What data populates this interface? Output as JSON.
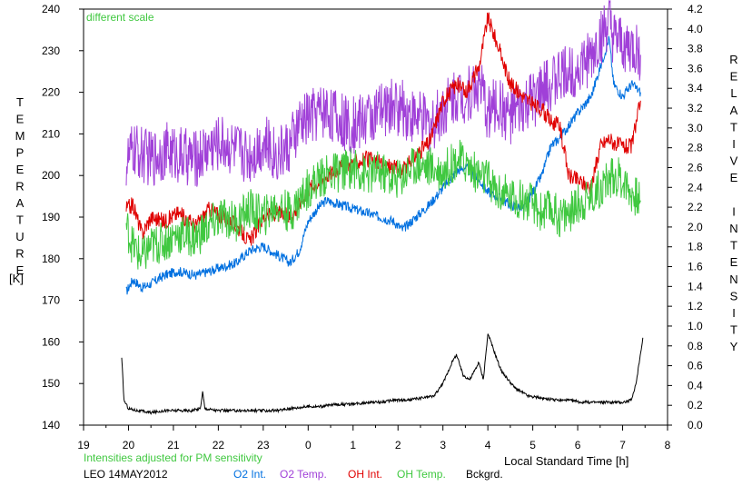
{
  "chart_data": {
    "type": "line",
    "title": "",
    "xlabel": "Local Standard Time [h]",
    "ylabel_left": "TEMPERATURE",
    "ylabel_left_unit": "[K]",
    "ylabel_right": "RELATIVE INTENSITY",
    "x_tick_labels": [
      "19",
      "20",
      "21",
      "22",
      "23",
      "0",
      "1",
      "2",
      "3",
      "4",
      "5",
      "6",
      "7",
      "8"
    ],
    "x_range": [
      19,
      32
    ],
    "y_left_range": [
      140,
      240
    ],
    "y_left_ticks": [
      140,
      150,
      160,
      170,
      180,
      190,
      200,
      210,
      220,
      230,
      240
    ],
    "y_right_range": [
      0.0,
      4.2
    ],
    "y_right_ticks": [
      "0.0",
      "0.2",
      "0.4",
      "0.6",
      "0.8",
      "1.0",
      "1.2",
      "1.4",
      "1.6",
      "1.8",
      "2.0",
      "2.2",
      "2.4",
      "2.6",
      "2.8",
      "3.0",
      "3.2",
      "3.4",
      "3.6",
      "3.8",
      "4.0",
      "4.2"
    ],
    "grid": false,
    "annotations": {
      "scale_note": "different scale",
      "pm_note": "Intensities adjusted for PM sensitivity",
      "station": "LEO 14MAY2012"
    },
    "legend_placement": "bottom",
    "series": [
      {
        "name": "O2 Int.",
        "color": "#0070e0",
        "axis": "left",
        "x": [
          19.95,
          20.1,
          20.3,
          20.5,
          20.8,
          21.1,
          21.5,
          21.8,
          22.1,
          22.4,
          22.7,
          23.0,
          23.3,
          23.6,
          23.8,
          24.0,
          24.2,
          24.4,
          24.7,
          25.0,
          25.3,
          25.6,
          25.9,
          26.1,
          26.4,
          26.7,
          27.0,
          27.3,
          27.5,
          27.8,
          28.0,
          28.2,
          28.5,
          28.8,
          29.0,
          29.2,
          29.4,
          29.6,
          29.8,
          30.0,
          30.3,
          30.5,
          30.7,
          30.8,
          31.0,
          31.2,
          31.4
        ],
        "y": [
          172,
          175,
          173,
          174,
          176,
          177,
          176,
          177,
          178,
          179,
          182,
          183,
          181,
          179,
          182,
          189,
          192,
          194,
          193,
          192,
          191,
          190,
          189,
          187,
          190,
          193,
          197,
          201,
          202,
          199,
          196,
          195,
          193,
          192,
          196,
          200,
          207,
          209,
          212,
          215,
          219,
          226,
          233,
          222,
          219,
          222,
          220
        ]
      },
      {
        "name": "O2 Temp.",
        "color": "#a040d8",
        "axis": "left",
        "x": [
          19.95,
          20.1,
          20.3,
          20.5,
          20.8,
          21.1,
          21.5,
          21.8,
          22.1,
          22.4,
          22.7,
          23.0,
          23.3,
          23.6,
          23.8,
          24.0,
          24.2,
          24.4,
          24.7,
          25.0,
          25.3,
          25.6,
          25.9,
          26.1,
          26.4,
          26.7,
          27.0,
          27.3,
          27.5,
          27.8,
          28.0,
          28.2,
          28.5,
          28.8,
          29.0,
          29.2,
          29.4,
          29.6,
          29.8,
          30.0,
          30.3,
          30.5,
          30.7,
          30.8,
          31.0,
          31.2,
          31.4
        ],
        "y": [
          203,
          206,
          205,
          204,
          206,
          205,
          204,
          207,
          208,
          206,
          205,
          208,
          205,
          207,
          212,
          214,
          215,
          216,
          213,
          212,
          214,
          215,
          217,
          216,
          214,
          212,
          216,
          220,
          219,
          222,
          215,
          217,
          214,
          216,
          218,
          220,
          222,
          224,
          225,
          226,
          228,
          233,
          236,
          232,
          231,
          230,
          229
        ]
      },
      {
        "name": "OH Int.",
        "color": "#e00000",
        "axis": "left",
        "x": [
          19.95,
          20.1,
          20.3,
          20.5,
          20.8,
          21.1,
          21.5,
          21.8,
          22.1,
          22.4,
          22.7,
          23.0,
          23.3,
          23.6,
          23.8,
          24.0,
          24.2,
          24.4,
          24.7,
          25.0,
          25.3,
          25.6,
          25.9,
          26.1,
          26.4,
          26.7,
          27.0,
          27.3,
          27.5,
          27.8,
          28.0,
          28.2,
          28.5,
          28.8,
          29.0,
          29.2,
          29.4,
          29.6,
          29.8,
          30.0,
          30.3,
          30.5,
          30.7,
          30.8,
          31.0,
          31.2,
          31.4
        ],
        "y": [
          192,
          193,
          186,
          190,
          189,
          191,
          188,
          192,
          190,
          188,
          184,
          190,
          191,
          190,
          193,
          197,
          198,
          200,
          202,
          203,
          204,
          203,
          202,
          201,
          205,
          208,
          218,
          222,
          220,
          226,
          238,
          232,
          222,
          219,
          217,
          216,
          213,
          212,
          200,
          199,
          197,
          207,
          209,
          208,
          207,
          207,
          218
        ]
      },
      {
        "name": "OH Temp.",
        "color": "#40c840",
        "axis": "left",
        "x": [
          19.95,
          20.1,
          20.3,
          20.5,
          20.8,
          21.1,
          21.5,
          21.8,
          22.1,
          22.4,
          22.7,
          23.0,
          23.3,
          23.6,
          23.8,
          24.0,
          24.2,
          24.4,
          24.7,
          25.0,
          25.3,
          25.6,
          25.9,
          26.1,
          26.4,
          26.7,
          27.0,
          27.3,
          27.5,
          27.8,
          28.0,
          28.2,
          28.5,
          28.8,
          29.0,
          29.2,
          29.4,
          29.6,
          29.8,
          30.0,
          30.3,
          30.5,
          30.7,
          30.8,
          31.0,
          31.2,
          31.4
        ],
        "y": [
          188,
          183,
          180,
          183,
          184,
          186,
          185,
          188,
          190,
          189,
          192,
          190,
          193,
          191,
          194,
          197,
          199,
          200,
          201,
          202,
          200,
          201,
          199,
          200,
          203,
          202,
          201,
          204,
          203,
          200,
          199,
          196,
          195,
          194,
          193,
          191,
          192,
          190,
          191,
          193,
          195,
          197,
          199,
          200,
          199,
          196,
          194
        ]
      },
      {
        "name": "Bckgrd.",
        "color": "#000000",
        "axis": "left",
        "x": [
          19.85,
          19.9,
          20.0,
          20.2,
          20.5,
          20.8,
          21.1,
          21.4,
          21.6,
          21.65,
          21.7,
          22.0,
          22.3,
          22.6,
          23.0,
          23.3,
          23.6,
          24.0,
          24.3,
          24.6,
          25.0,
          25.3,
          25.6,
          25.9,
          26.2,
          26.5,
          26.8,
          27.0,
          27.2,
          27.3,
          27.45,
          27.6,
          27.8,
          27.9,
          28.0,
          28.1,
          28.3,
          28.6,
          28.9,
          29.2,
          29.5,
          29.8,
          30.1,
          30.4,
          30.7,
          31.0,
          31.2,
          31.3,
          31.45
        ],
        "y": [
          156,
          146,
          144,
          143.5,
          143,
          143.5,
          143.5,
          143.5,
          144,
          148,
          144,
          143.5,
          143.5,
          143.5,
          143.5,
          143.5,
          144,
          144.5,
          144.5,
          145,
          145,
          145.5,
          145.5,
          146,
          146,
          146.5,
          147,
          150,
          155,
          157,
          152,
          151,
          155,
          151,
          162,
          159,
          153,
          149,
          147,
          146.5,
          146,
          146,
          145.5,
          145.5,
          145.5,
          145.5,
          146,
          150,
          161
        ]
      }
    ]
  }
}
